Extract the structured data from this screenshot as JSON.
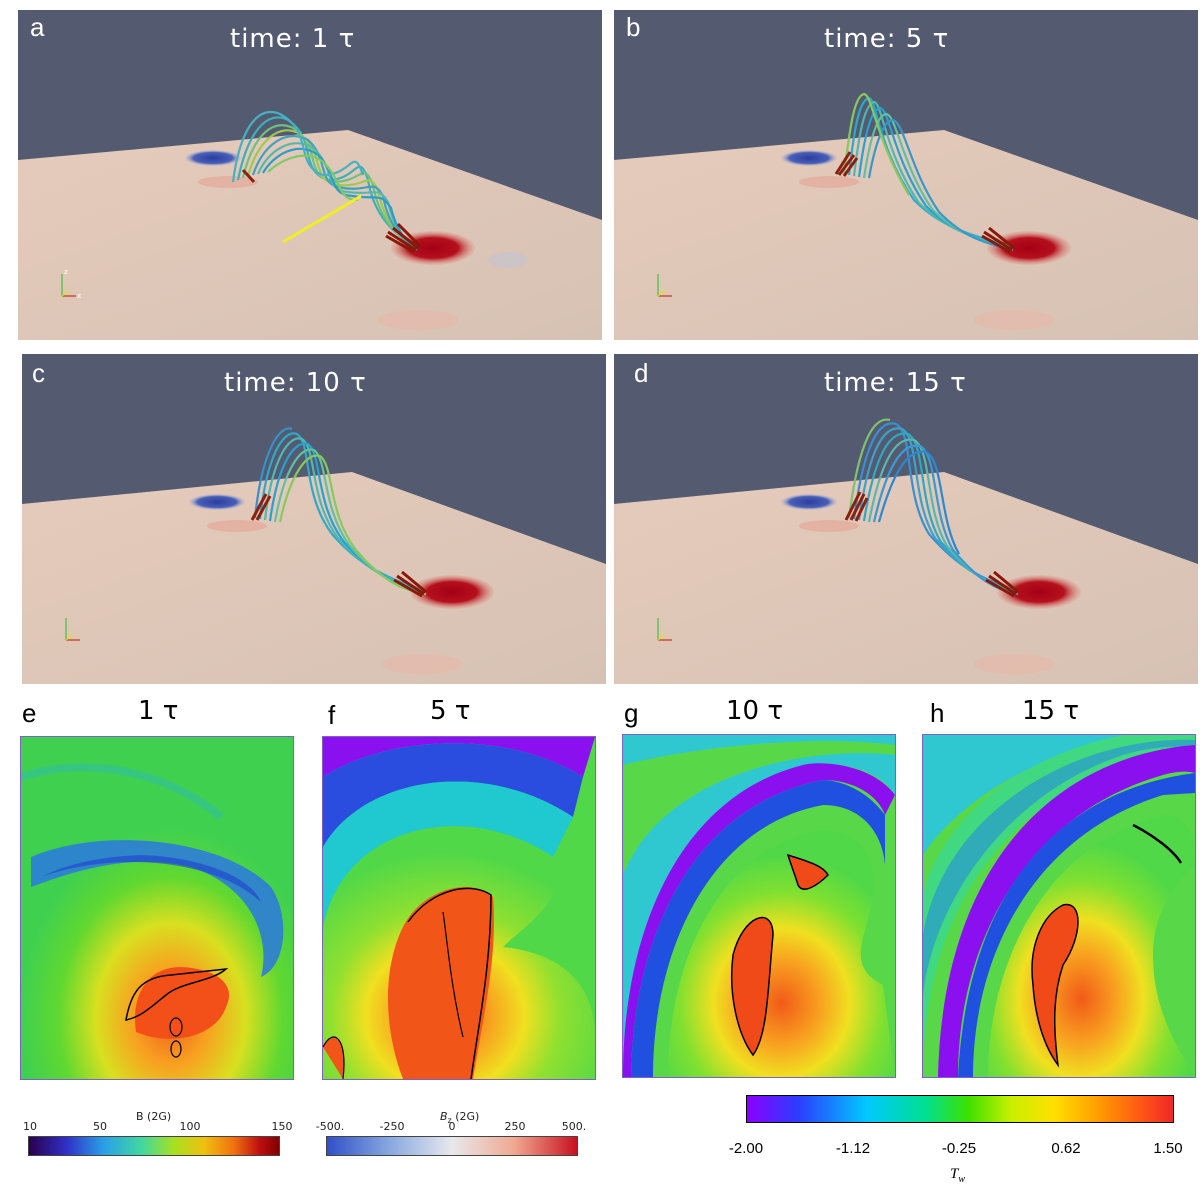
{
  "panels_3d": [
    {
      "label": "a",
      "title": "time: 1 τ"
    },
    {
      "label": "b",
      "title": "time: 5 τ"
    },
    {
      "label": "c",
      "title": "time: 10 τ"
    },
    {
      "label": "d",
      "title": "time: 15 τ"
    }
  ],
  "panels_map": [
    {
      "label": "e",
      "title": "1 τ"
    },
    {
      "label": "f",
      "title": "5 τ"
    },
    {
      "label": "g",
      "title": "10 τ"
    },
    {
      "label": "h",
      "title": "15 τ"
    }
  ],
  "colorbar_b": {
    "title": "B (2G)",
    "ticks": [
      "10",
      "50",
      "100",
      "150"
    ]
  },
  "colorbar_bz": {
    "title": "B",
    "title_sub": "z",
    "title_rest": " (2G)",
    "ticks": [
      "-500.",
      "-250",
      "0",
      "250",
      "500."
    ]
  },
  "colorbar_tw": {
    "ticks": [
      "-2.00",
      "-1.12",
      "-0.25",
      "0.62",
      "1.50"
    ],
    "label": "T",
    "label_sub": "w"
  },
  "colors": {
    "background_3d": "#545a6f",
    "annotation_line": "#f0f020"
  }
}
